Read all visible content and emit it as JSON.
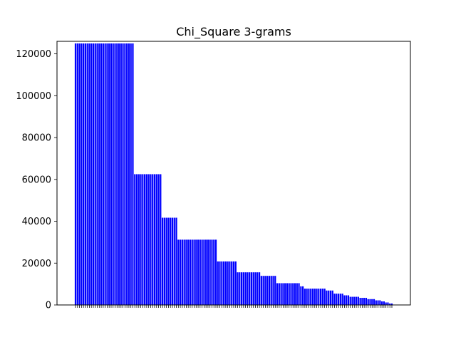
{
  "chart_data": {
    "type": "bar",
    "title": "Chi_Square 3-grams",
    "xlabel": "",
    "ylabel": "",
    "ylim": [
      0,
      126000
    ],
    "yticks": [
      0,
      20000,
      40000,
      60000,
      80000,
      100000,
      120000
    ],
    "grid": false,
    "bar_color": "#0000ff",
    "levels": [
      {
        "value": 125000,
        "count": 30
      },
      {
        "value": 62500,
        "count": 14
      },
      {
        "value": 41700,
        "count": 8
      },
      {
        "value": 31200,
        "count": 20
      },
      {
        "value": 20800,
        "count": 10
      },
      {
        "value": 15600,
        "count": 12
      },
      {
        "value": 13900,
        "count": 8
      },
      {
        "value": 10400,
        "count": 12
      },
      {
        "value": 8900,
        "count": 2
      },
      {
        "value": 7800,
        "count": 11
      },
      {
        "value": 6900,
        "count": 4
      },
      {
        "value": 5400,
        "count": 5
      },
      {
        "value": 4600,
        "count": 3
      },
      {
        "value": 3900,
        "count": 5
      },
      {
        "value": 3400,
        "count": 4
      },
      {
        "value": 2800,
        "count": 4
      },
      {
        "value": 2200,
        "count": 3
      },
      {
        "value": 1700,
        "count": 2
      },
      {
        "value": 1200,
        "count": 2
      },
      {
        "value": 700,
        "count": 2
      }
    ]
  }
}
